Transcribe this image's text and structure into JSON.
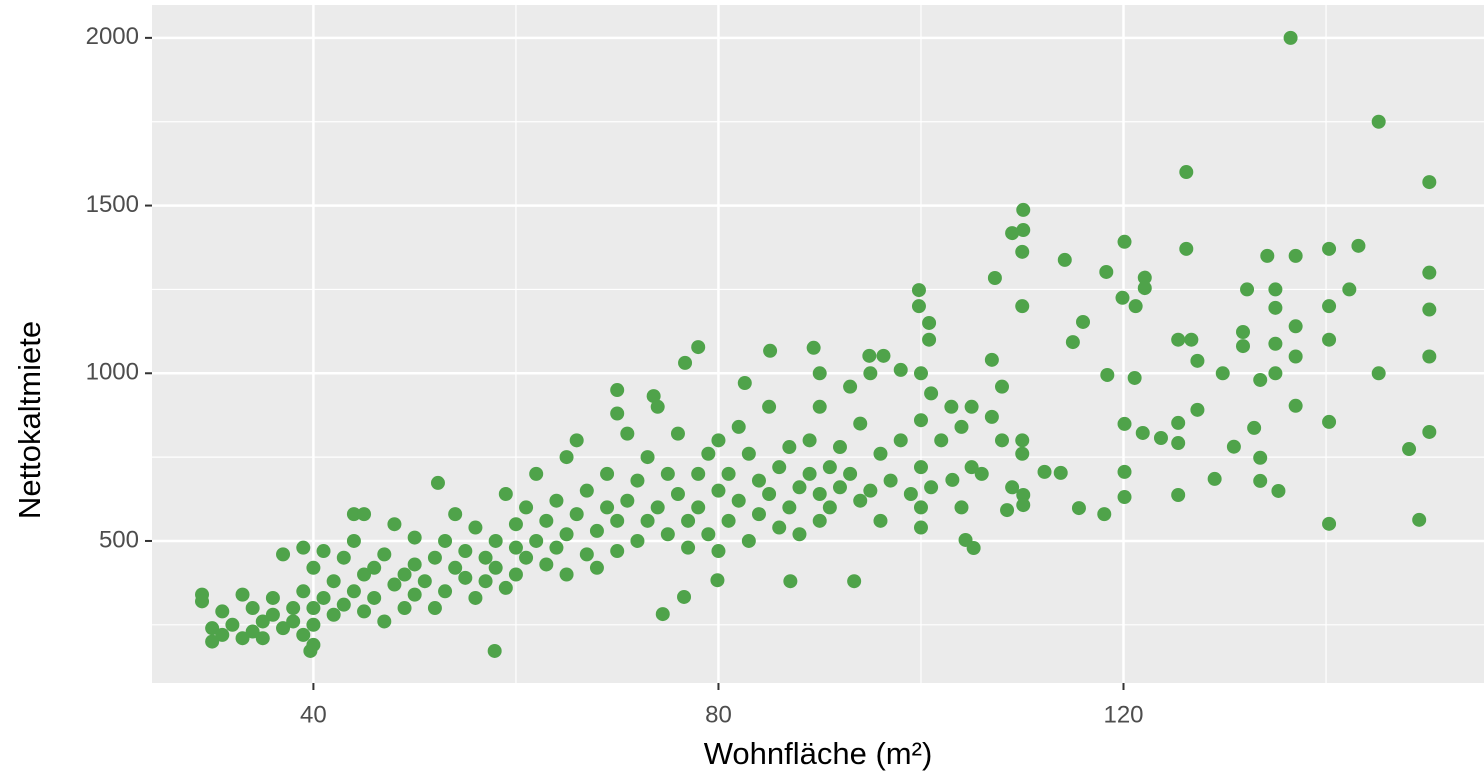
{
  "chart_data": {
    "type": "scatter",
    "xlabel": "Wohnfläche (m²)",
    "ylabel": "Nettokaltmiete",
    "color": "#4fa34a",
    "background": "#ebebeb",
    "grid": true,
    "xlim": [
      24.06,
      155.6
    ],
    "ylim": [
      76.5,
      2098
    ],
    "xticks": [
      40,
      80,
      120
    ],
    "yticks": [
      500,
      1000,
      1500,
      2000
    ],
    "xminor_ticks": [
      60,
      100,
      140
    ],
    "yminor_ticks": [
      250,
      750,
      1250,
      1750
    ],
    "x": [
      136.5,
      145.2,
      150.2,
      126.2,
      110.1,
      110.1,
      109,
      110,
      114.2,
      126.2,
      120.1,
      143.2,
      140.3,
      137,
      134.2,
      132.2,
      135,
      142.3,
      150.2,
      150.2,
      140.3,
      135,
      137,
      131.8,
      131.8,
      125.4,
      126.7,
      127.3,
      135,
      137,
      140.3,
      150.2,
      145.2,
      135,
      129.8,
      133.5,
      137,
      127.3,
      140.3,
      150.2,
      148.2,
      132.9,
      130.9,
      133.5,
      129,
      133.5,
      135.3,
      125.4,
      140.3,
      149.2,
      125.4,
      125.4,
      123.7,
      121.9,
      122.1,
      122.1,
      121.2,
      119.9,
      118.3,
      116,
      115,
      118.4,
      121.1,
      120.1,
      120.1,
      120.1,
      118.1,
      115.6,
      113.8,
      112.2,
      110.1,
      110.1,
      108.5,
      107.3,
      103.1,
      104.4,
      105.2,
      93.4,
      87.1,
      74.5,
      57.9,
      39.7,
      99.8,
      99.8,
      100.8,
      100.8,
      96.3,
      94.9,
      78,
      76.7,
      85.1,
      89.4,
      82.6,
      70,
      73.6,
      52.3,
      44,
      76.6,
      79.9,
      29,
      29,
      30,
      30,
      31,
      31,
      32,
      33,
      33,
      34,
      34,
      35,
      35,
      36,
      36,
      37,
      37,
      38,
      38,
      39,
      39,
      39,
      40,
      40,
      40,
      40,
      41,
      41,
      42,
      42,
      43,
      43,
      44,
      44,
      45,
      45,
      45,
      46,
      46,
      47,
      47,
      48,
      48,
      49,
      49,
      50,
      50,
      50,
      51,
      52,
      52,
      53,
      53,
      54,
      54,
      55,
      55,
      56,
      56,
      57,
      57,
      58,
      58,
      59,
      59,
      60,
      60,
      60,
      61,
      61,
      62,
      62,
      63,
      63,
      64,
      64,
      65,
      65,
      65,
      66,
      66,
      67,
      67,
      68,
      68,
      69,
      69,
      70,
      70,
      70,
      71,
      71,
      72,
      72,
      73,
      73,
      74,
      74,
      75,
      75,
      76,
      76,
      77,
      77,
      78,
      78,
      79,
      79,
      80,
      80,
      80,
      81,
      81,
      82,
      82,
      83,
      83,
      84,
      84,
      85,
      85,
      86,
      86,
      87,
      87,
      88,
      88,
      89,
      89,
      90,
      90,
      90,
      90,
      91,
      91,
      92,
      92,
      93,
      93,
      94,
      94,
      95,
      95,
      96,
      96,
      97,
      98,
      98,
      99,
      100,
      100,
      100,
      100,
      100,
      101,
      101,
      102,
      103,
      104,
      104,
      105,
      105,
      106,
      107,
      107,
      108,
      108,
      109,
      110,
      110,
      110
    ],
    "values": [
      2000,
      1750,
      1570,
      1600,
      1487,
      1427,
      1418,
      1362,
      1338,
      1371,
      1392,
      1380,
      1371,
      1350,
      1350,
      1250,
      1250,
      1250,
      1300,
      1190,
      1200,
      1195,
      1140,
      1123,
      1081,
      1100,
      1100,
      1037,
      1088,
      1050,
      1100,
      1050,
      1000,
      1000,
      1000,
      980,
      903,
      891,
      855,
      825,
      774,
      837,
      781,
      748,
      685,
      679,
      649,
      637,
      551,
      563,
      852,
      792,
      807,
      822,
      1285,
      1254,
      1200,
      1225,
      1302,
      1153,
      1093,
      995,
      986,
      849,
      706,
      631,
      580,
      598,
      703,
      706,
      637,
      607,
      592,
      1284,
      682,
      503,
      479,
      380,
      380,
      282,
      172,
      172,
      1248,
      1200,
      1150,
      1100,
      1052,
      1052,
      1078,
      1031,
      1067,
      1076,
      971,
      950,
      932,
      673,
      580,
      333,
      383,
      340,
      320,
      240,
      200,
      290,
      220,
      250,
      210,
      340,
      300,
      230,
      260,
      210,
      280,
      330,
      240,
      460,
      300,
      260,
      480,
      350,
      220,
      420,
      300,
      190,
      250,
      470,
      330,
      380,
      280,
      450,
      310,
      350,
      500,
      580,
      400,
      290,
      420,
      330,
      460,
      260,
      370,
      550,
      400,
      300,
      430,
      510,
      340,
      380,
      450,
      300,
      500,
      350,
      420,
      580,
      390,
      470,
      540,
      330,
      450,
      380,
      500,
      420,
      640,
      360,
      480,
      550,
      400,
      600,
      450,
      500,
      700,
      430,
      560,
      620,
      480,
      750,
      520,
      400,
      580,
      800,
      460,
      650,
      530,
      420,
      600,
      700,
      560,
      880,
      470,
      620,
      820,
      500,
      680,
      560,
      750,
      600,
      900,
      520,
      700,
      640,
      820,
      560,
      480,
      700,
      600,
      760,
      520,
      650,
      800,
      470,
      560,
      700,
      620,
      840,
      500,
      760,
      680,
      580,
      900,
      640,
      720,
      540,
      780,
      600,
      660,
      520,
      800,
      700,
      1000,
      640,
      900,
      560,
      720,
      600,
      780,
      660,
      960,
      700,
      620,
      850,
      1000,
      650,
      760,
      560,
      680,
      1010,
      800,
      640,
      720,
      860,
      1000,
      540,
      600,
      940,
      660,
      800,
      900,
      840,
      600,
      900,
      720,
      700,
      1040,
      870,
      960,
      800,
      660,
      1200,
      800,
      760
    ]
  }
}
